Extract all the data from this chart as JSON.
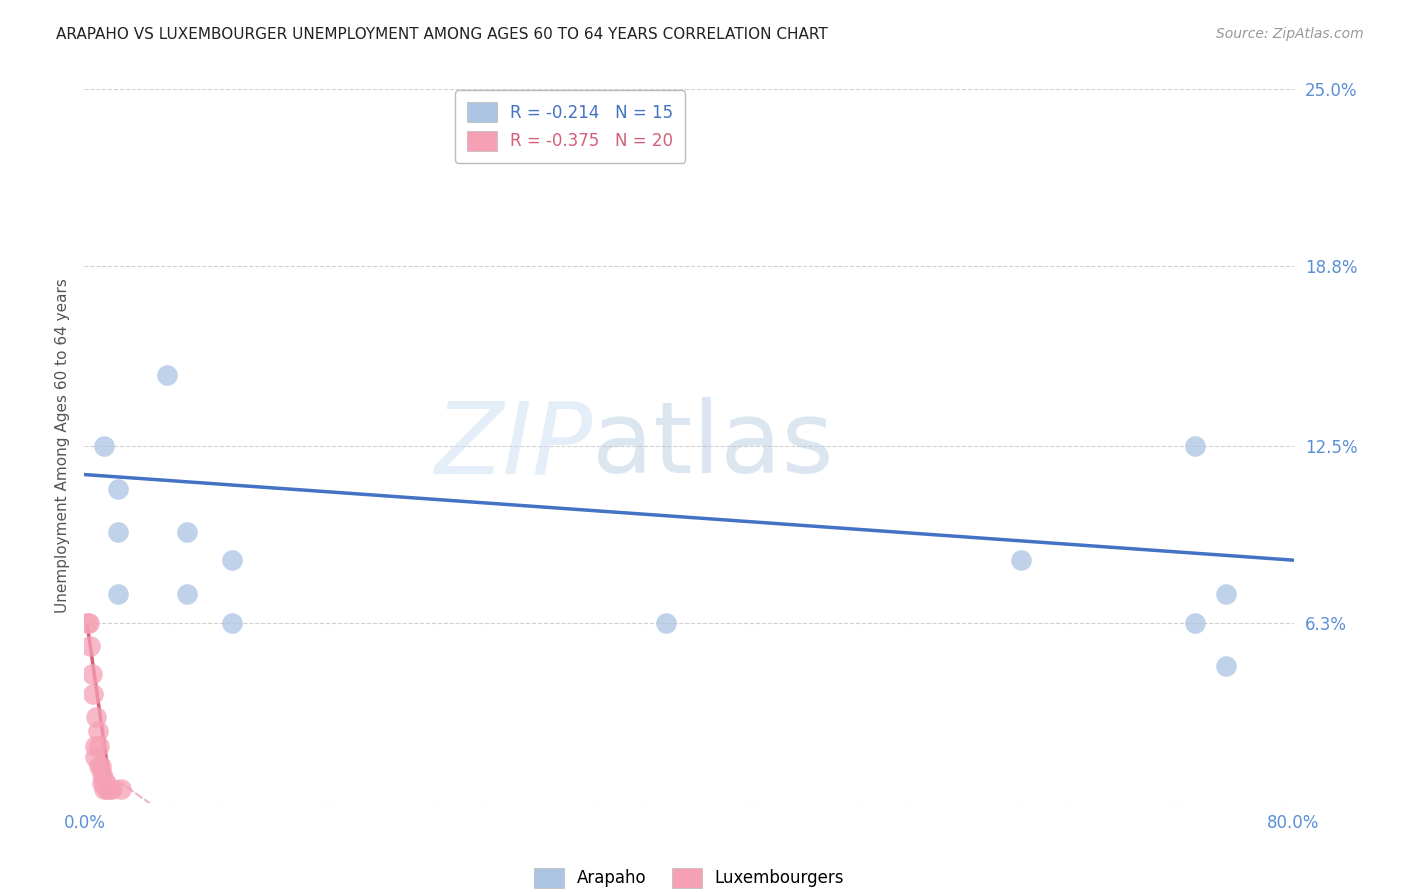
{
  "title": "ARAPAHO VS LUXEMBOURGER UNEMPLOYMENT AMONG AGES 60 TO 64 YEARS CORRELATION CHART",
  "source": "Source: ZipAtlas.com",
  "ylabel": "Unemployment Among Ages 60 to 64 years",
  "xlim": [
    0.0,
    0.8
  ],
  "ylim": [
    0.0,
    0.25
  ],
  "yticks": [
    0.0,
    0.063,
    0.125,
    0.188,
    0.25
  ],
  "ytick_labels": [
    "",
    "6.3%",
    "12.5%",
    "18.8%",
    "25.0%"
  ],
  "xticks": [
    0.0,
    0.2,
    0.4,
    0.6,
    0.8
  ],
  "xtick_labels": [
    "0.0%",
    "",
    "",
    "",
    "80.0%"
  ],
  "legend_arapaho_R": "-0.214",
  "legend_arapaho_N": "15",
  "legend_luxembourger_R": "-0.375",
  "legend_luxembourger_N": "20",
  "arapaho_color": "#aac4e2",
  "luxembourger_color": "#f5a0b5",
  "trendline_arapaho_color": "#4472c4",
  "trendline_luxembourger_color": "#d45f7a",
  "watermark_zip": "ZIP",
  "watermark_atlas": "atlas",
  "arapaho_x": [
    0.013,
    0.022,
    0.022,
    0.022,
    0.055,
    0.068,
    0.068,
    0.098,
    0.098,
    0.385,
    0.62,
    0.735,
    0.735,
    0.755,
    0.755
  ],
  "arapaho_y": [
    0.125,
    0.11,
    0.095,
    0.073,
    0.15,
    0.095,
    0.073,
    0.085,
    0.063,
    0.063,
    0.085,
    0.063,
    0.125,
    0.073,
    0.048
  ],
  "luxembourger_x": [
    0.002,
    0.003,
    0.004,
    0.005,
    0.006,
    0.007,
    0.007,
    0.008,
    0.009,
    0.01,
    0.01,
    0.011,
    0.012,
    0.012,
    0.013,
    0.013,
    0.015,
    0.016,
    0.018,
    0.024
  ],
  "luxembourger_y": [
    0.063,
    0.063,
    0.055,
    0.045,
    0.038,
    0.02,
    0.016,
    0.03,
    0.025,
    0.02,
    0.013,
    0.013,
    0.01,
    0.007,
    0.008,
    0.005,
    0.005,
    0.005,
    0.005,
    0.005
  ],
  "background_color": "#ffffff",
  "grid_color": "#cccccc",
  "tick_color": "#5b8fd6"
}
